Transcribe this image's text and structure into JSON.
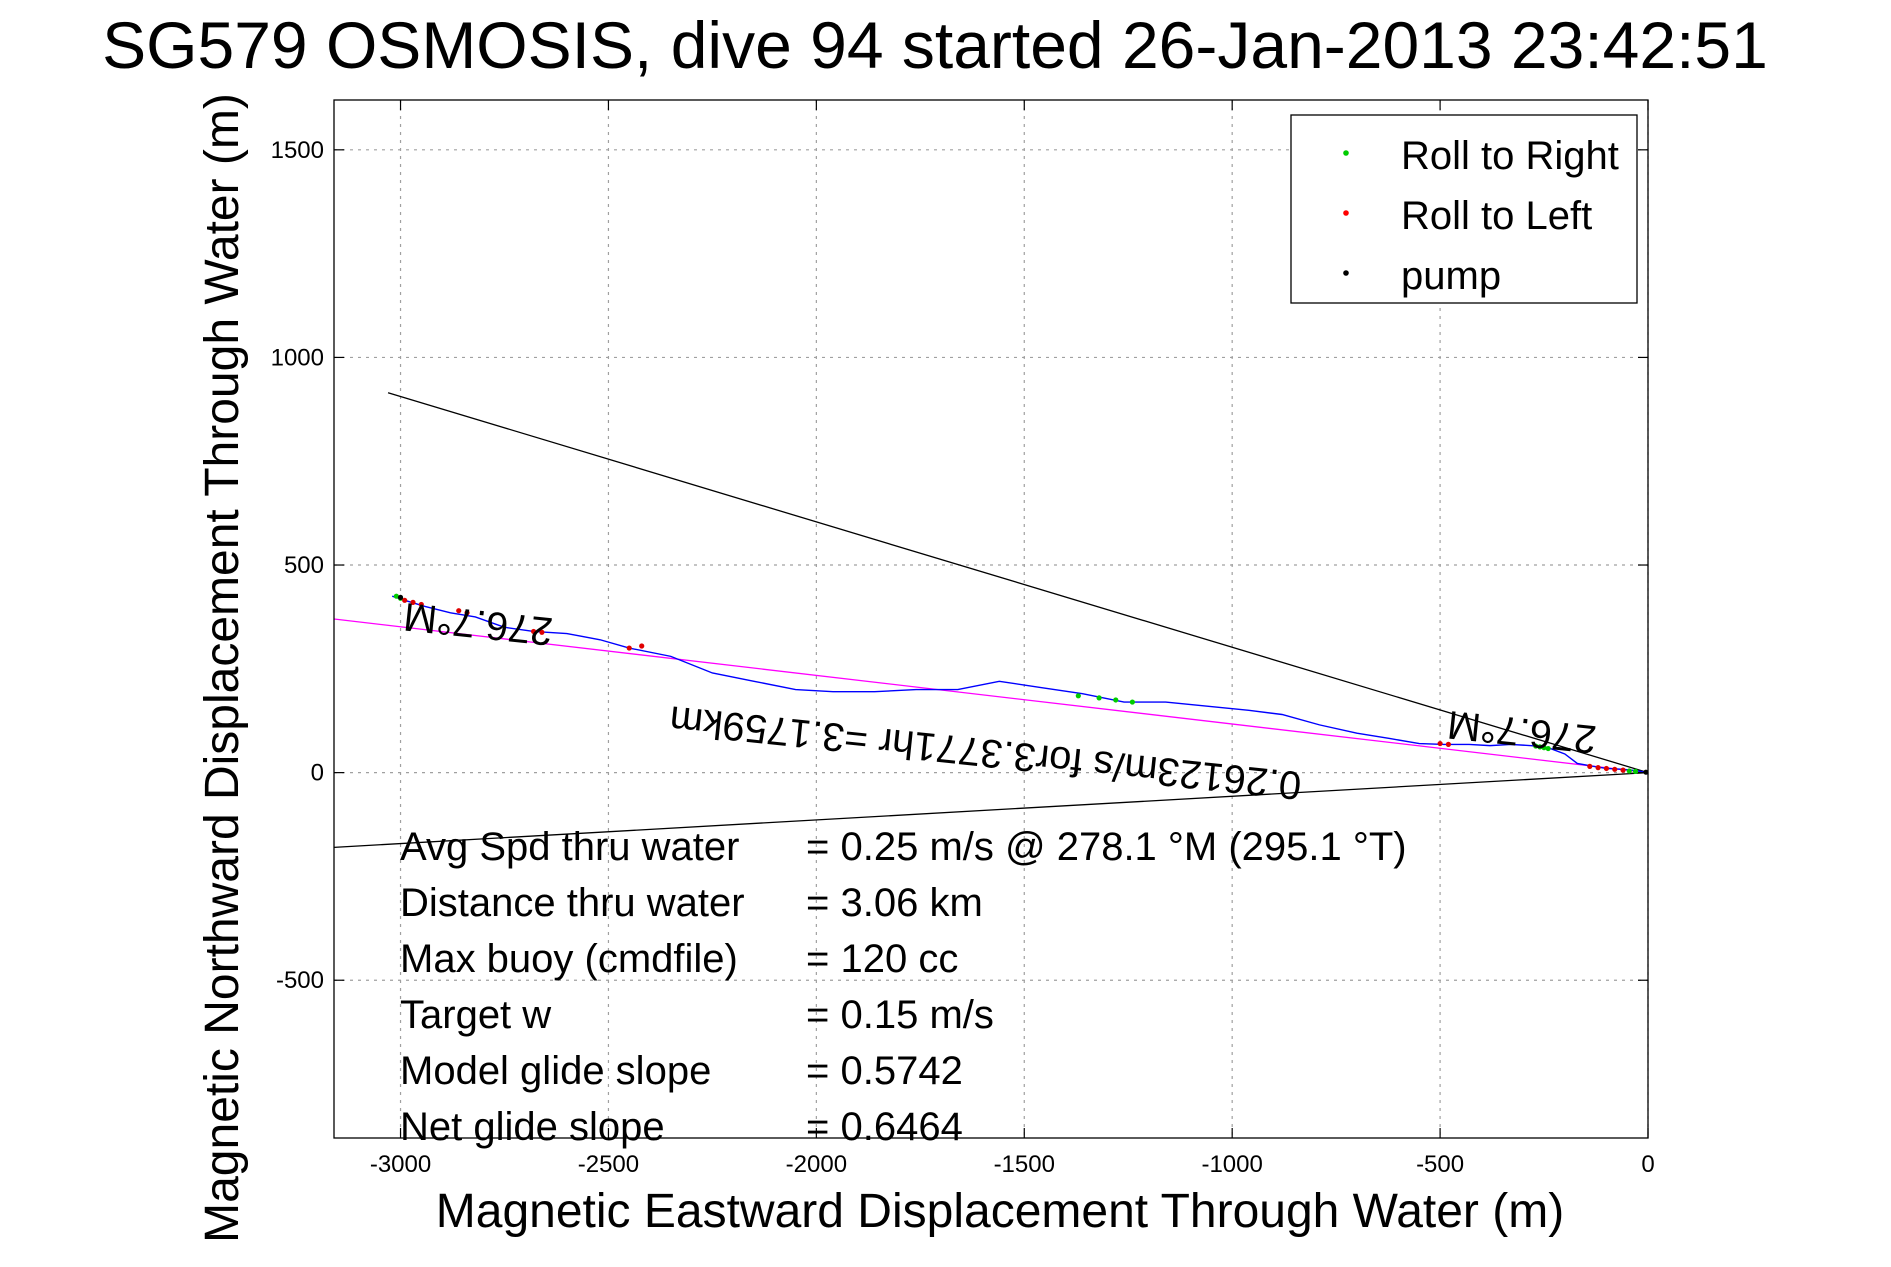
{
  "chart_data": {
    "type": "line",
    "title": "SG579 OSMOSIS, dive 94 started 26-Jan-2013 23:42:51",
    "xlabel": "Magnetic Eastward Displacement Through Water (m)",
    "ylabel": "Magnetic Northward Displacement Through Water (m)",
    "xlim": [
      -3160,
      0
    ],
    "ylim": [
      -880,
      1620
    ],
    "xticks": [
      -3000,
      -2500,
      -2000,
      -1500,
      -1000,
      -500,
      0
    ],
    "xtick_labels": [
      "-3000",
      "-2500",
      "-2000",
      "-1500",
      "-1000",
      "-500",
      "0"
    ],
    "yticks": [
      -500,
      0,
      500,
      1000,
      1500
    ],
    "ytick_labels": [
      "-500",
      "0",
      "500",
      "1000",
      "1500"
    ],
    "grid": true,
    "legend_position": "top-right",
    "legend": [
      {
        "label": "Roll to Right",
        "color": "#00cc00"
      },
      {
        "label": "Roll to Left",
        "color": "#ff0000"
      },
      {
        "label": "pump",
        "color": "#000000"
      }
    ],
    "series": [
      {
        "color": "#0000ff",
        "x": [
          0,
          -30,
          -60,
          -100,
          -130,
          -170,
          -200,
          -240,
          -280,
          -330,
          -380,
          -430,
          -490,
          -550,
          -620,
          -700,
          -790,
          -880,
          -960,
          -1060,
          -1160,
          -1260,
          -1360,
          -1460,
          -1560,
          -1660,
          -1760,
          -1860,
          -1960,
          -2050,
          -2150,
          -2250,
          -2350,
          -2450,
          -2520,
          -2600,
          -2680,
          -2750,
          -2820,
          -2880,
          -2940,
          -2990,
          -3020
        ],
        "y": [
          0,
          5,
          8,
          10,
          15,
          22,
          45,
          60,
          65,
          68,
          65,
          68,
          68,
          70,
          82,
          95,
          115,
          140,
          150,
          160,
          170,
          170,
          190,
          205,
          220,
          200,
          200,
          195,
          195,
          200,
          220,
          240,
          280,
          300,
          320,
          335,
          340,
          350,
          375,
          385,
          400,
          415,
          425
        ]
      }
    ],
    "reference_lines": [
      {
        "name": "heading-line",
        "color": "#ff00ff",
        "x": [
          0,
          -3160
        ],
        "y": [
          0,
          370
        ]
      },
      {
        "name": "upper-bound-line",
        "color": "#000000",
        "x": [
          0,
          -3030
        ],
        "y": [
          0,
          915
        ]
      },
      {
        "name": "lower-bound-line",
        "color": "#000000",
        "x": [
          0,
          -3160
        ],
        "y": [
          0,
          -180
        ]
      }
    ],
    "markers": {
      "roll_right": [
        [
          -30,
          3
        ],
        [
          -45,
          4
        ],
        [
          -240,
          58
        ],
        [
          -250,
          60
        ],
        [
          -260,
          62
        ],
        [
          -270,
          64
        ],
        [
          -1370,
          185
        ],
        [
          -1320,
          180
        ],
        [
          -1280,
          175
        ],
        [
          -1240,
          170
        ],
        [
          -3000,
          420
        ],
        [
          -3010,
          425
        ]
      ],
      "roll_left": [
        [
          -60,
          6
        ],
        [
          -80,
          8
        ],
        [
          -100,
          10
        ],
        [
          -120,
          12
        ],
        [
          -140,
          15
        ],
        [
          -480,
          68
        ],
        [
          -500,
          70
        ],
        [
          -2420,
          305
        ],
        [
          -2450,
          300
        ],
        [
          -2680,
          340
        ],
        [
          -2660,
          338
        ],
        [
          -2840,
          385
        ],
        [
          -2860,
          390
        ],
        [
          -2950,
          405
        ],
        [
          -2970,
          410
        ],
        [
          -2990,
          415
        ]
      ],
      "pump": [
        [
          -5,
          1
        ],
        [
          -3000,
          422
        ]
      ]
    },
    "annotations": [
      {
        "text": "276.7°M",
        "x": -2810,
        "y": 390,
        "rotation_deg": 186
      },
      {
        "text": "276.7°M",
        "x": -300,
        "y": 130,
        "rotation_deg": 186
      },
      {
        "text": "0.26123m/s for3.3771hr =3.1759km",
        "x": -1590,
        "y": 80,
        "rotation_deg": 186
      }
    ],
    "stats": [
      {
        "label": "Avg Spd thru water",
        "value": "=  0.25 m/s @ 278.1 °M (295.1 °T)"
      },
      {
        "label": "Distance thru water",
        "value": "=  3.06 km"
      },
      {
        "label": "Max buoy (cmdfile)",
        "value": "= 120 cc"
      },
      {
        "label": "Target w",
        "value": "= 0.15 m/s"
      },
      {
        "label": "Model glide slope",
        "value": "= 0.5742"
      },
      {
        "label": "Net glide slope",
        "value": "= 0.6464"
      }
    ]
  }
}
